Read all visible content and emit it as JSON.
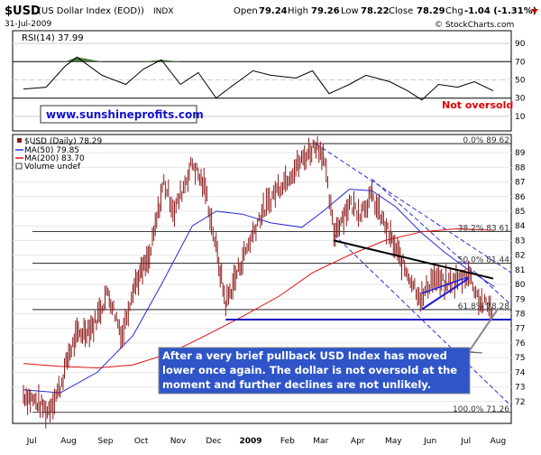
{
  "header": {
    "symbol": "$USD",
    "description": "(US Dollar Index (EOD))",
    "exchange": "INDX",
    "date": "31-Jul-2009",
    "open_label": "Open",
    "open": "79.24",
    "high_label": "High",
    "high": "79.26",
    "low_label": "Low",
    "low": "78.22",
    "close_label": "Close",
    "close": "78.29",
    "chg_label": "Chg",
    "chg": "-1.04 (-1.31%)",
    "copyright": "© StockCharts.com"
  },
  "rsi_panel": {
    "label": "RSI(14) 37.99",
    "watermark": "www.sunshineprofits.com",
    "note": "Not oversold",
    "tick_labels": [
      "90",
      "70",
      "50",
      "30",
      "10"
    ]
  },
  "price_panel": {
    "legend": {
      "price": "$USD (Daily) 78.29",
      "ma50": "MA(50) 79.85",
      "ma200": "MA(200) 83.70",
      "volume": "Volume undef"
    },
    "fib_labels": {
      "top": "0.0% 89.62",
      "f382": "38.2% 83.61",
      "f50": "50.0% 81.44",
      "f618": "61.8% 78.28",
      "bottom": "100.0% 71.26"
    },
    "price_tick_labels": [
      "89",
      "88",
      "87",
      "86",
      "85",
      "84",
      "83",
      "82",
      "81",
      "80",
      "79",
      "78",
      "77",
      "76",
      "75",
      "74",
      "73",
      "72"
    ],
    "callout": "After a very brief pullback USD Index has moved lower once again. The dollar is not oversold at the moment and further declines are not unlikely."
  },
  "x_axis": {
    "labels": [
      "Jul",
      "Aug",
      "Sep",
      "Oct",
      "Nov",
      "Dec",
      "2009",
      "Feb",
      "Mar",
      "Apr",
      "May",
      "Jun",
      "Jul",
      "Aug"
    ]
  },
  "colors": {
    "background": "#ffffff",
    "price_bar": "#8b1a1a",
    "ma50": "#2a2ad8",
    "ma200": "#e01010",
    "rsi_line": "#000000",
    "rsi_fill": "#4a7a3a",
    "channel": "#2a2ad8",
    "support": "#1010c8",
    "callout_bg": "#2f55c8",
    "callout_text": "#ffffff",
    "note_text": "#e00000",
    "watermark_text": "#1212cc"
  },
  "chart_data": {
    "type": "line",
    "title": "$USD (US Dollar Index (EOD)) INDX",
    "ylim": [
      71,
      89.5
    ],
    "x_range": [
      "2008-07-01",
      "2009-08-06"
    ],
    "series": [
      {
        "name": "$USD (Daily) 78.29",
        "x": [
          "2008-07-01",
          "2008-07-15",
          "2008-07-21",
          "2008-08-01",
          "2008-08-08",
          "2008-08-15",
          "2008-08-29",
          "2008-09-10",
          "2008-09-22",
          "2008-10-01",
          "2008-10-15",
          "2008-10-27",
          "2008-11-05",
          "2008-11-20",
          "2008-12-01",
          "2008-12-10",
          "2008-12-18",
          "2008-12-31",
          "2009-01-15",
          "2009-01-30",
          "2009-02-15",
          "2009-03-04",
          "2009-03-10",
          "2009-03-19",
          "2009-04-01",
          "2009-04-10",
          "2009-04-20",
          "2009-05-01",
          "2009-05-15",
          "2009-06-01",
          "2009-06-10",
          "2009-06-20",
          "2009-07-01",
          "2009-07-10",
          "2009-07-20",
          "2009-07-31"
        ],
        "values": [
          72.5,
          71.8,
          71.3,
          73.0,
          75.2,
          76.5,
          77.2,
          79.5,
          76.5,
          79.8,
          81.8,
          87.0,
          85.0,
          88.3,
          86.5,
          82.5,
          78.7,
          81.5,
          84.5,
          86.5,
          88.0,
          89.6,
          88.9,
          83.5,
          85.5,
          85.0,
          86.0,
          84.0,
          81.5,
          79.0,
          80.5,
          80.0,
          80.3,
          80.8,
          78.8,
          78.29
        ]
      },
      {
        "name": "MA(50) 79.85",
        "x": [
          "2008-07-01",
          "2008-08-01",
          "2008-09-01",
          "2008-10-01",
          "2008-10-25",
          "2008-11-20",
          "2008-12-10",
          "2009-01-01",
          "2009-01-25",
          "2009-02-20",
          "2009-03-10",
          "2009-04-01",
          "2009-04-20",
          "2009-05-10",
          "2009-06-01",
          "2009-06-20",
          "2009-07-10",
          "2009-08-01"
        ],
        "values": [
          72.8,
          72.6,
          74.0,
          76.5,
          80.0,
          84.0,
          85.0,
          84.8,
          84.2,
          83.9,
          85.0,
          86.5,
          86.4,
          85.3,
          83.5,
          82.2,
          81.0,
          79.85
        ]
      },
      {
        "name": "MA(200) 83.70",
        "x": [
          "2008-07-01",
          "2008-08-01",
          "2008-09-01",
          "2008-10-01",
          "2008-11-01",
          "2008-12-01",
          "2009-01-01",
          "2009-02-01",
          "2009-03-01",
          "2009-04-01",
          "2009-05-01",
          "2009-06-01",
          "2009-07-01",
          "2009-08-01"
        ],
        "values": [
          74.6,
          74.4,
          74.3,
          74.5,
          75.3,
          76.5,
          77.8,
          79.2,
          80.8,
          82.0,
          83.0,
          83.6,
          83.8,
          83.7
        ]
      },
      {
        "name": "RSI(14) 37.99",
        "x": [
          "2008-07-01",
          "2008-07-20",
          "2008-08-05",
          "2008-08-15",
          "2008-09-05",
          "2008-09-25",
          "2008-10-10",
          "2008-10-25",
          "2008-11-10",
          "2008-11-25",
          "2008-12-10",
          "2008-12-20",
          "2009-01-10",
          "2009-01-25",
          "2009-02-15",
          "2009-03-01",
          "2009-03-15",
          "2009-04-01",
          "2009-04-15",
          "2009-05-05",
          "2009-05-20",
          "2009-06-01",
          "2009-06-15",
          "2009-07-01",
          "2009-07-15",
          "2009-07-31"
        ],
        "values": [
          40,
          42,
          65,
          75,
          55,
          45,
          62,
          72,
          45,
          58,
          30,
          40,
          60,
          55,
          52,
          60,
          35,
          45,
          55,
          48,
          38,
          28,
          45,
          42,
          48,
          37.99
        ]
      }
    ],
    "fibonacci_levels": [
      {
        "label": "0.0%",
        "value": 89.62
      },
      {
        "label": "38.2%",
        "value": 83.61
      },
      {
        "label": "50.0%",
        "value": 81.44
      },
      {
        "label": "61.8%",
        "value": 78.28
      },
      {
        "label": "100.0%",
        "value": 71.26
      }
    ],
    "rsi_levels": [
      90,
      70,
      50,
      30,
      10
    ]
  }
}
